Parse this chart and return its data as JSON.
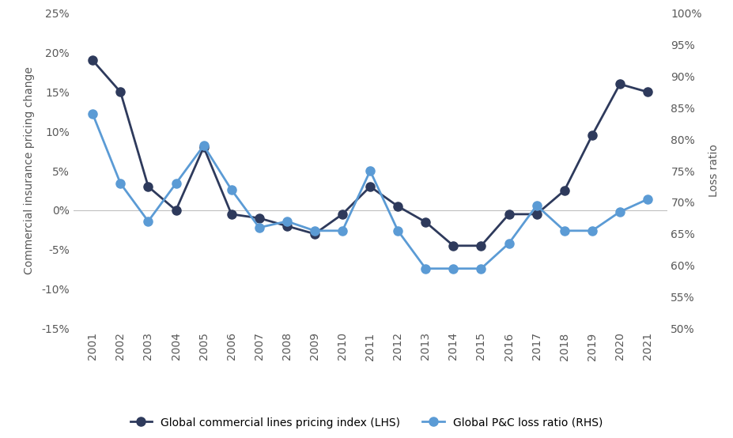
{
  "years": [
    2001,
    2002,
    2003,
    2004,
    2005,
    2006,
    2007,
    2008,
    2009,
    2010,
    2011,
    2012,
    2013,
    2014,
    2015,
    2016,
    2017,
    2018,
    2019,
    2020,
    2021
  ],
  "pricing_index": [
    0.19,
    0.15,
    0.03,
    0.0,
    0.08,
    -0.005,
    -0.01,
    -0.02,
    -0.03,
    -0.005,
    0.03,
    0.005,
    -0.015,
    -0.045,
    -0.045,
    -0.005,
    -0.005,
    0.025,
    0.095,
    0.16,
    0.15
  ],
  "loss_ratio": [
    0.84,
    0.73,
    0.67,
    0.73,
    0.79,
    0.72,
    0.66,
    0.67,
    0.655,
    0.655,
    0.75,
    0.655,
    0.595,
    0.595,
    0.595,
    0.635,
    0.695,
    0.655,
    0.655,
    0.685,
    0.705
  ],
  "pricing_color": "#2e3a5c",
  "loss_ratio_color": "#5b9bd5",
  "lhs_ylim": [
    -0.15,
    0.25
  ],
  "rhs_ylim": [
    0.5,
    1.0
  ],
  "lhs_yticks": [
    -0.15,
    -0.1,
    -0.05,
    0.0,
    0.05,
    0.1,
    0.15,
    0.2,
    0.25
  ],
  "rhs_yticks": [
    0.5,
    0.55,
    0.6,
    0.65,
    0.7,
    0.75,
    0.8,
    0.85,
    0.9,
    0.95,
    1.0
  ],
  "ylabel_left": "Commercial insurance pricing change",
  "ylabel_right": "Loss ratio",
  "legend_lhs": "Global commercial lines pricing index (LHS)",
  "legend_rhs": "Global P&C loss ratio (RHS)",
  "background_color": "#ffffff",
  "zero_line_color": "#c0c0c0"
}
